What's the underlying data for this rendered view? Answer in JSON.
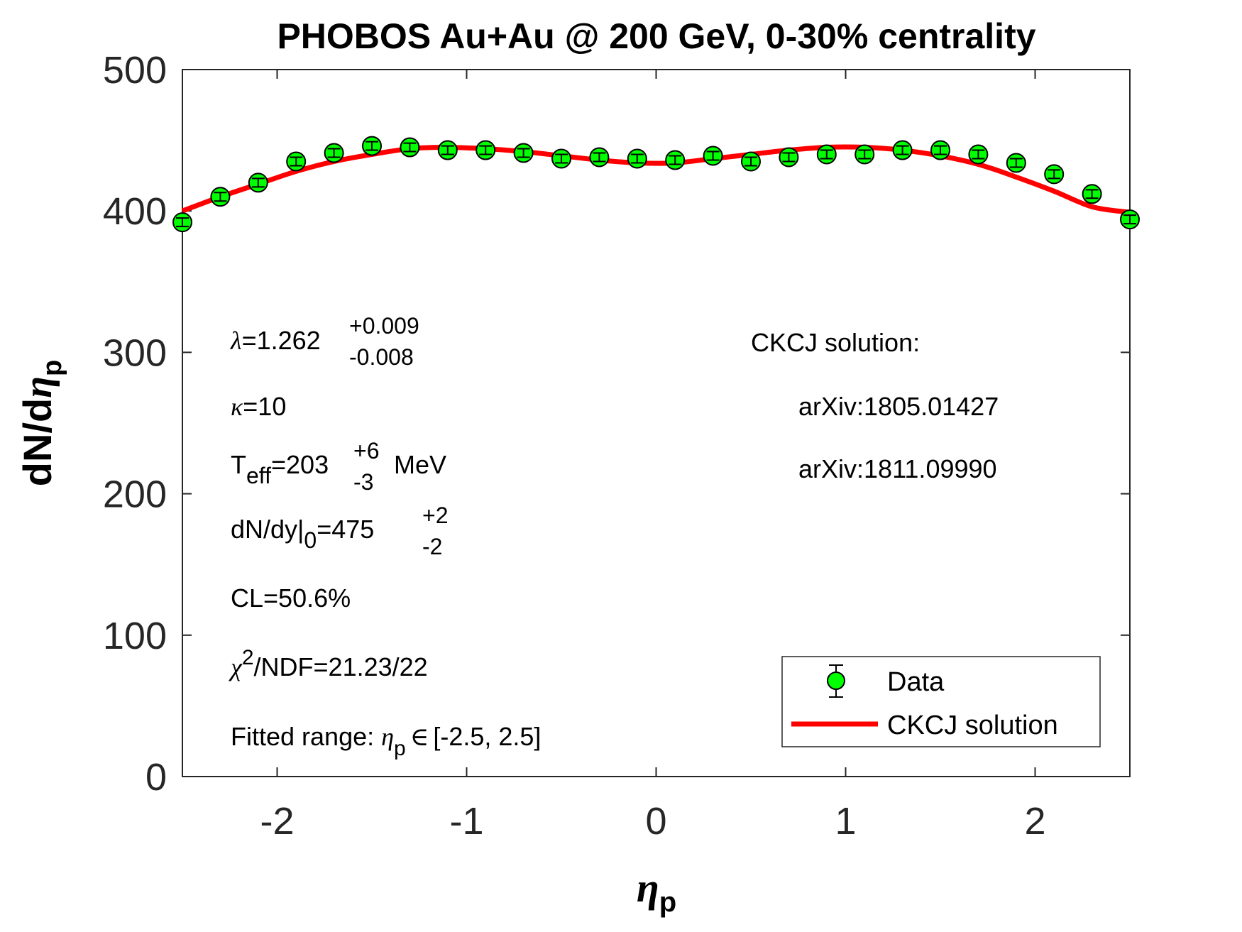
{
  "chart_data": {
    "type": "scatter",
    "title": "PHOBOS Au+Au @ 200 GeV, 0-30% centrality",
    "xlabel": {
      "symbol": "η",
      "subscript": "p"
    },
    "ylabel": {
      "prefix": "dN/d",
      "symbol": "η",
      "subscript": "p"
    },
    "xlim": [
      -2.5,
      2.5
    ],
    "ylim": [
      0,
      500
    ],
    "x_ticks": [
      -2,
      -1,
      0,
      1,
      2
    ],
    "x_tick_labels": [
      "-2",
      "-1",
      "0",
      "1",
      "2"
    ],
    "y_ticks": [
      0,
      100,
      200,
      300,
      400,
      500
    ],
    "y_tick_labels": [
      "0",
      "100",
      "200",
      "300",
      "400",
      "500"
    ],
    "grid": false,
    "series": [
      {
        "name": "Data",
        "kind": "errorbar-markers",
        "marker_color": "#00ff00",
        "x": [
          -2.5,
          -2.3,
          -2.1,
          -1.9,
          -1.7,
          -1.5,
          -1.3,
          -1.1,
          -0.9,
          -0.7,
          -0.5,
          -0.3,
          -0.1,
          0.1,
          0.3,
          0.5,
          0.7,
          0.9,
          1.1,
          1.3,
          1.5,
          1.7,
          1.9,
          2.1,
          2.3,
          2.5
        ],
        "y": [
          392,
          410,
          420,
          435,
          441,
          446,
          445,
          443,
          443,
          441,
          437,
          438,
          437,
          436,
          439,
          435,
          438,
          440,
          440,
          443,
          443,
          440,
          434,
          426,
          412,
          394
        ],
        "yerr": [
          3,
          3,
          3,
          3,
          3,
          3,
          3,
          3,
          3,
          3,
          3,
          3,
          3,
          3,
          3,
          3,
          3,
          3,
          3,
          3,
          3,
          3,
          3,
          3,
          3,
          3
        ]
      },
      {
        "name": "CKCJ solution",
        "kind": "line",
        "color": "#ff0000",
        "x": [
          -2.5,
          -2.3,
          -2.1,
          -1.9,
          -1.7,
          -1.5,
          -1.3,
          -1.1,
          -0.9,
          -0.7,
          -0.5,
          -0.3,
          -0.1,
          0.1,
          0.3,
          0.5,
          0.7,
          0.9,
          1.1,
          1.3,
          1.5,
          1.7,
          1.9,
          2.1,
          2.3,
          2.5
        ],
        "y": [
          400,
          410,
          419,
          428,
          435,
          440,
          444,
          445,
          444,
          442,
          439,
          436,
          434,
          434,
          437,
          440,
          443,
          445,
          445,
          443,
          439,
          433,
          424,
          414,
          403,
          399
        ]
      }
    ],
    "legend": {
      "position": "bottom-right",
      "entries": [
        "Data",
        "CKCJ solution"
      ]
    },
    "annotations_left": {
      "lambda": {
        "symbol": "λ",
        "value": "=1.262",
        "sup": "+0.009",
        "sub": "-0.008"
      },
      "kappa": {
        "symbol": "κ",
        "value": "=10"
      },
      "teff": {
        "base": "T",
        "base_sub": "eff",
        "value": "=203",
        "sup": "+6",
        "sub": "-3",
        "unit": "MeV"
      },
      "dndy": {
        "base": "dN/dy|",
        "base_sub": "0",
        "value": "=475",
        "sup": "+2",
        "sub": "-2"
      },
      "cl": "CL=50.6%",
      "chi2": {
        "symbol": "χ",
        "sup": "2",
        "value": "/NDF=21.23/22"
      },
      "fitted": {
        "prefix": "Fitted range: ",
        "symbol": "η",
        "sub": "p",
        "rel": "∈",
        "range": "[-2.5, 2.5]"
      }
    },
    "annotations_right": {
      "heading": "CKCJ solution:",
      "ref1": "arXiv:1805.01427",
      "ref2": "arXiv:1811.09990"
    }
  },
  "colors": {
    "axis": "#262626",
    "marker": "#00ff00",
    "curve": "#ff0000",
    "text": "#000000"
  }
}
